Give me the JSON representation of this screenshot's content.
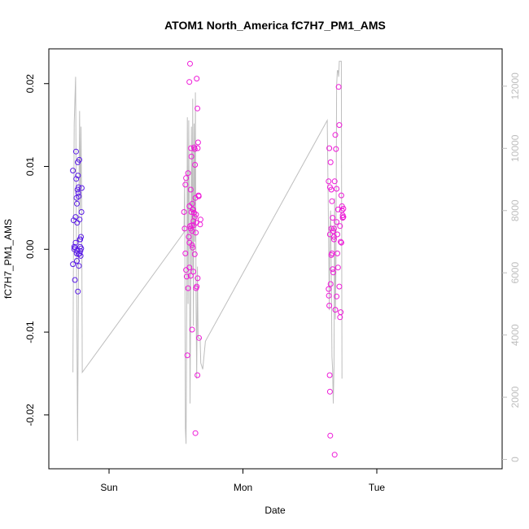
{
  "chart_data": {
    "type": "scatter",
    "title": "ATOM1 North_America fC7H7_PM1_AMS",
    "xlabel": "Date",
    "ylabel": "fC7H7_PM1_AMS",
    "x_ticks": [
      "Sun",
      "Mon",
      "Tue"
    ],
    "ylim": [
      -0.0265,
      0.0242
    ],
    "y_ticks": [
      -0.02,
      -0.01,
      0.0,
      0.01,
      0.02
    ],
    "y_tick_labels": [
      "-0.02",
      "-0.01",
      "0.00",
      "0.01",
      "0.02"
    ],
    "y2lim": [
      -300,
      13200
    ],
    "y2_ticks": [
      0,
      2000,
      4000,
      6000,
      8000,
      10000,
      12000
    ],
    "grid": false,
    "colors": {
      "axis": "#000000",
      "right_axis": "#bebebe",
      "line": "#bebebe",
      "point_early": "#5a1be6",
      "point_late": "#ee1ad8"
    },
    "series": [
      {
        "kind": "points",
        "values": [
          [
            -0.27,
            0.0095
          ],
          [
            -0.265,
            0.0035
          ],
          [
            -0.26,
            0.0003
          ],
          [
            -0.255,
            0.0002
          ],
          [
            -0.27,
            -0.0018
          ],
          [
            -0.255,
            -0.0037
          ],
          [
            -0.25,
            0.0039
          ],
          [
            -0.247,
            0.0118
          ],
          [
            -0.245,
            0.0085
          ],
          [
            -0.243,
            0.0062
          ],
          [
            -0.24,
            0.0055
          ],
          [
            -0.238,
            0.0032
          ],
          [
            -0.236,
            0.0072
          ],
          [
            -0.234,
            0.0105
          ],
          [
            -0.232,
            0.0089
          ],
          [
            -0.23,
            0.0068
          ],
          [
            -0.228,
            0.0075
          ],
          [
            -0.226,
            0.0064
          ],
          [
            -0.222,
            0.0108
          ],
          [
            -0.22,
            0.0036
          ],
          [
            -0.218,
            0.0012
          ],
          [
            -0.216,
            0.0003
          ],
          [
            -0.214,
            -0.0002
          ],
          [
            -0.212,
            -0.0008
          ],
          [
            -0.21,
            0.0015
          ],
          [
            -0.208,
            0.0001
          ],
          [
            -0.206,
            0.0045
          ],
          [
            -0.204,
            0.0074
          ],
          [
            -0.24,
            -0.0014
          ],
          [
            -0.238,
            -0.0002
          ],
          [
            -0.233,
            -0.0051
          ],
          [
            -0.228,
            -0.0006
          ],
          [
            -0.225,
            -0.002
          ],
          [
            -0.26,
            0.0
          ],
          [
            -0.25,
            0.0008
          ],
          [
            -0.242,
            -0.0005
          ],
          [
            -0.22,
            -0.0005
          ],
          [
            -0.215,
            0.0012
          ]
        ]
      },
      {
        "kind": "points",
        "values": [
          [
            0.56,
            0.0045
          ],
          [
            0.565,
            0.0025
          ],
          [
            0.57,
            0.0078
          ],
          [
            0.575,
            0.0086
          ],
          [
            0.58,
            -0.0033
          ],
          [
            0.585,
            -0.0128
          ],
          [
            0.59,
            0.0092
          ],
          [
            0.6,
            0.0202
          ],
          [
            0.605,
            0.0224
          ],
          [
            0.61,
            0.0072
          ],
          [
            0.612,
            0.0122
          ],
          [
            0.615,
            0.0112
          ],
          [
            0.618,
            0.0029
          ],
          [
            0.62,
            -0.0097
          ],
          [
            0.622,
            0.0055
          ],
          [
            0.625,
            0.0002
          ],
          [
            0.628,
            0.0048
          ],
          [
            0.63,
            0.0034
          ],
          [
            0.633,
            0.0029
          ],
          [
            0.636,
            0.0123
          ],
          [
            0.64,
            0.0121
          ],
          [
            0.642,
            0.0102
          ],
          [
            0.645,
            0.0062
          ],
          [
            0.648,
            0.002
          ],
          [
            0.65,
            0.0042
          ],
          [
            0.652,
            0.0032
          ],
          [
            0.655,
            0.0206
          ],
          [
            0.66,
            0.017
          ],
          [
            0.662,
            0.0122
          ],
          [
            0.665,
            0.0129
          ],
          [
            0.668,
            0.0065
          ],
          [
            0.67,
            0.0064
          ],
          [
            0.672,
            -0.0107
          ],
          [
            0.68,
            0.003
          ],
          [
            0.683,
            0.0036
          ],
          [
            0.59,
            -0.0047
          ],
          [
            0.6,
            0.0008
          ],
          [
            0.61,
            0.0025
          ],
          [
            0.62,
            0.0005
          ],
          [
            0.63,
            -0.0027
          ],
          [
            0.64,
            -0.0006
          ],
          [
            0.65,
            -0.0047
          ],
          [
            0.655,
            -0.0045
          ],
          [
            0.66,
            -0.0152
          ],
          [
            0.662,
            -0.0035
          ],
          [
            0.645,
            -0.0222
          ],
          [
            0.595,
            0.0015
          ],
          [
            0.6,
            0.0052
          ],
          [
            0.605,
            0.0028
          ],
          [
            0.615,
            0.0045
          ],
          [
            0.62,
            0.0022
          ],
          [
            0.625,
            0.0048
          ],
          [
            0.635,
            0.0044
          ],
          [
            0.64,
            0.0039
          ],
          [
            0.575,
            -0.0025
          ],
          [
            0.57,
            -0.0005
          ],
          [
            0.6,
            -0.0022
          ],
          [
            0.61,
            -0.0032
          ]
        ]
      },
      {
        "kind": "points",
        "values": [
          [
            1.64,
            0.0082
          ],
          [
            1.645,
            0.0122
          ],
          [
            1.65,
            0.0075
          ],
          [
            1.655,
            0.0105
          ],
          [
            1.66,
            0.0072
          ],
          [
            1.665,
            0.0058
          ],
          [
            1.67,
            0.0038
          ],
          [
            1.675,
            0.0022
          ],
          [
            1.68,
            0.0012
          ],
          [
            1.685,
            0.0082
          ],
          [
            1.69,
            0.0138
          ],
          [
            1.695,
            0.0121
          ],
          [
            1.7,
            0.0073
          ],
          [
            1.705,
            0.0018
          ],
          [
            1.71,
            0.0048
          ],
          [
            1.715,
            0.0196
          ],
          [
            1.72,
            0.015
          ],
          [
            1.725,
            0.0028
          ],
          [
            1.73,
            0.0009
          ],
          [
            1.735,
            0.0065
          ],
          [
            1.74,
            0.0052
          ],
          [
            1.745,
            0.0038
          ],
          [
            1.75,
            0.0049
          ],
          [
            1.64,
            -0.0048
          ],
          [
            1.642,
            -0.0056
          ],
          [
            1.645,
            -0.0068
          ],
          [
            1.648,
            -0.0152
          ],
          [
            1.65,
            -0.0172
          ],
          [
            1.652,
            -0.0225
          ],
          [
            1.655,
            -0.0042
          ],
          [
            1.66,
            -0.0007
          ],
          [
            1.665,
            -0.0005
          ],
          [
            1.67,
            -0.0024
          ],
          [
            1.675,
            -0.0028
          ],
          [
            1.68,
            0.0015
          ],
          [
            1.685,
            -0.0248
          ],
          [
            1.69,
            -0.0073
          ],
          [
            1.7,
            -0.0057
          ],
          [
            1.705,
            -0.0005
          ],
          [
            1.71,
            -0.0022
          ],
          [
            1.72,
            -0.0045
          ],
          [
            1.725,
            -0.0082
          ],
          [
            1.73,
            -0.0076
          ],
          [
            1.735,
            0.0008
          ],
          [
            1.65,
            0.0018
          ],
          [
            1.66,
            0.0025
          ],
          [
            1.74,
            0.0047
          ],
          [
            1.745,
            0.0041
          ],
          [
            1.7,
            0.0033
          ],
          [
            1.75,
            0.0039
          ],
          [
            1.68,
            0.0025
          ]
        ]
      },
      {
        "kind": "line",
        "axis": "right",
        "values": [
          [
            -0.27,
            2800
          ],
          [
            -0.265,
            7200
          ],
          [
            -0.26,
            10800
          ],
          [
            -0.25,
            12300
          ],
          [
            -0.245,
            8000
          ],
          [
            -0.24,
            4200
          ],
          [
            -0.235,
            600
          ],
          [
            -0.23,
            4500
          ],
          [
            -0.225,
            8500
          ],
          [
            -0.22,
            11200
          ],
          [
            -0.215,
            8000
          ],
          [
            -0.21,
            10700
          ],
          [
            -0.205,
            8500
          ],
          [
            -0.2,
            2800
          ],
          [
            0.56,
            7300
          ],
          [
            0.565,
            9000
          ],
          [
            0.57,
            1000
          ],
          [
            0.575,
            500
          ],
          [
            0.58,
            4200
          ],
          [
            0.585,
            11000
          ],
          [
            0.59,
            5000
          ],
          [
            0.595,
            10900
          ],
          [
            0.6,
            8000
          ],
          [
            0.605,
            1800
          ],
          [
            0.61,
            4900
          ],
          [
            0.615,
            10700
          ],
          [
            0.62,
            6000
          ],
          [
            0.625,
            11600
          ],
          [
            0.63,
            4300
          ],
          [
            0.635,
            10800
          ],
          [
            0.64,
            7000
          ],
          [
            0.645,
            11800
          ],
          [
            0.65,
            5000
          ],
          [
            0.655,
            2600
          ],
          [
            0.66,
            6200
          ],
          [
            0.665,
            3900
          ],
          [
            0.67,
            3900
          ],
          [
            0.68,
            3900
          ],
          [
            0.685,
            3100
          ],
          [
            0.7,
            2900
          ],
          [
            0.72,
            3800
          ],
          [
            1.63,
            10900
          ],
          [
            1.64,
            7000
          ],
          [
            1.645,
            4800
          ],
          [
            1.65,
            7400
          ],
          [
            1.655,
            8000
          ],
          [
            1.66,
            6000
          ],
          [
            1.665,
            3300
          ],
          [
            1.67,
            2900
          ],
          [
            1.675,
            1800
          ],
          [
            1.68,
            3000
          ],
          [
            1.685,
            8400
          ],
          [
            1.69,
            4500
          ],
          [
            1.695,
            6200
          ],
          [
            1.7,
            12000
          ],
          [
            1.705,
            12500
          ],
          [
            1.71,
            12500
          ],
          [
            1.715,
            12300
          ],
          [
            1.72,
            12800
          ],
          [
            1.725,
            12800
          ],
          [
            1.73,
            12800
          ],
          [
            1.735,
            12800
          ],
          [
            1.74,
            2600
          ]
        ]
      }
    ]
  }
}
